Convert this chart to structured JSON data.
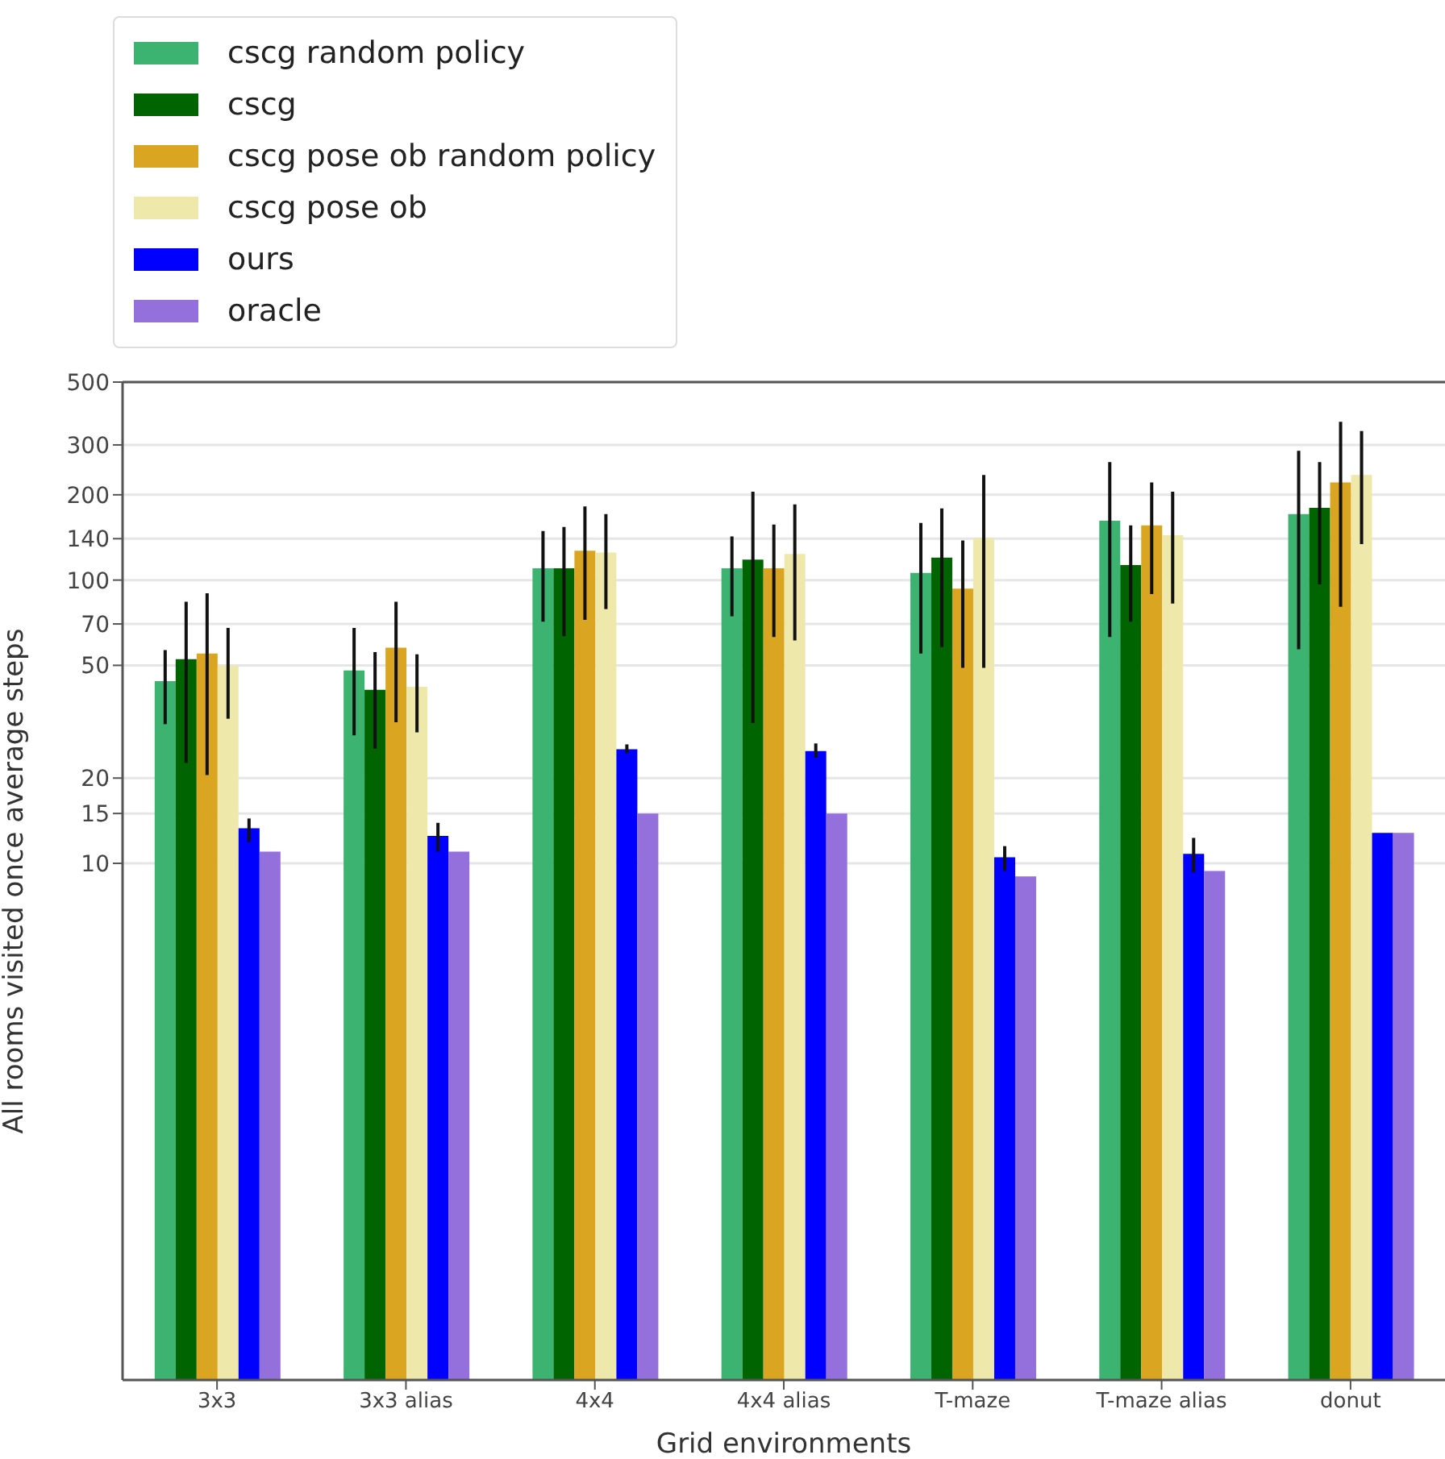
{
  "chart_data": {
    "type": "bar",
    "xlabel": "Grid environments",
    "ylabel": "All rooms visited once average steps",
    "categories": [
      "3x3",
      "3x3 alias",
      "4x4",
      "4x4 alias",
      "T-maze",
      "T-maze alias",
      "donut"
    ],
    "log": "y",
    "ylim": [
      0.15,
      500
    ],
    "yticks": [
      10,
      15,
      20,
      50,
      70,
      100,
      140,
      200,
      300,
      500
    ],
    "grid": "y",
    "legend": "top left",
    "series": [
      {
        "name": "cscg random policy",
        "color": "#3cb371",
        "values": [
          44,
          48,
          110,
          110,
          106,
          162,
          171
        ],
        "errors": [
          [
            31,
            56.6
          ],
          [
            28.3,
            67.8
          ],
          [
            71.3,
            149
          ],
          [
            74.5,
            142.6
          ],
          [
            55,
            159
          ],
          [
            63,
            261
          ],
          [
            57,
            286
          ]
        ]
      },
      {
        "name": "cscg",
        "color": "#006400",
        "values": [
          52.6,
          41,
          110,
          118,
          120,
          113,
          180
        ],
        "errors": [
          [
            22.6,
            83.8
          ],
          [
            25.4,
            55.7
          ],
          [
            63.4,
            154
          ],
          [
            31.3,
            205
          ],
          [
            58,
            179
          ],
          [
            71.3,
            156
          ],
          [
            96.6,
            261
          ]
        ]
      },
      {
        "name": "cscg pose ob random policy",
        "color": "#daa520",
        "values": [
          55,
          57.7,
          127,
          110,
          93.3,
          156,
          221
        ],
        "errors": [
          [
            20.5,
            89.8
          ],
          [
            31.5,
            83.8
          ],
          [
            72.4,
            182
          ],
          [
            63,
            157
          ],
          [
            49,
            138
          ],
          [
            89.3,
            221
          ],
          [
            80.5,
            362
          ]
        ]
      },
      {
        "name": "cscg pose ob",
        "color": "#eee8aa",
        "values": [
          50,
          42,
          125,
          123.6,
          141,
          144,
          235
        ],
        "errors": [
          [
            32.4,
            67.8
          ],
          [
            29,
            54.7
          ],
          [
            79,
            171
          ],
          [
            61.2,
            185
          ],
          [
            49,
            235
          ],
          [
            82.6,
            205
          ],
          [
            134,
            336
          ]
        ]
      },
      {
        "name": "ours",
        "color": "#0000ff",
        "values": [
          13.3,
          12.5,
          25.3,
          24.9,
          10.5,
          10.8,
          12.8
        ],
        "errors": [
          [
            11.9,
            14.4
          ],
          [
            11,
            13.9
          ],
          [
            24.5,
            26.3
          ],
          [
            23.6,
            26.5
          ],
          [
            9.4,
            11.5
          ],
          [
            9.3,
            12.3
          ],
          null
        ]
      },
      {
        "name": "oracle",
        "color": "#9370db",
        "values": [
          11,
          11,
          15,
          15,
          9,
          9.4,
          12.8
        ]
      }
    ]
  }
}
